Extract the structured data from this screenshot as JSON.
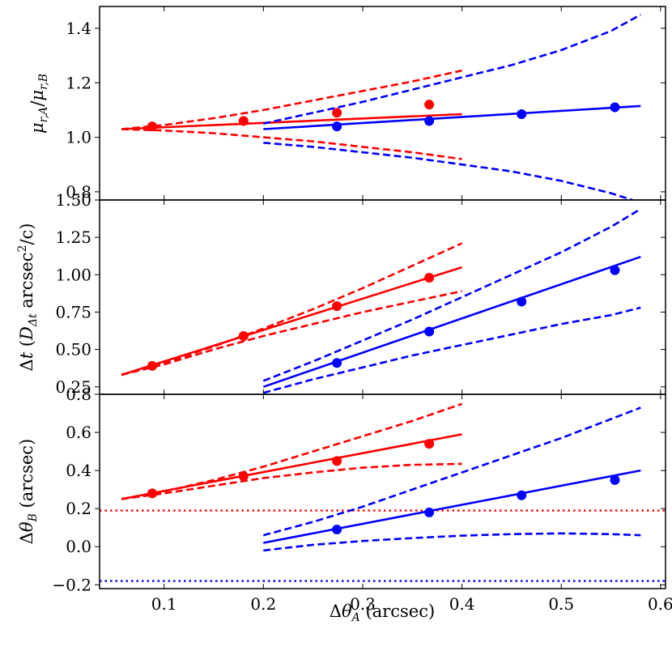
{
  "chart_data": {
    "type": "line",
    "x_axis": {
      "label": "Δθ_A (arcsec)",
      "xlim": [
        0.035,
        0.605
      ],
      "ticks": [
        0.1,
        0.2,
        0.3,
        0.4,
        0.5,
        0.6
      ],
      "tick_labels": [
        "0.1",
        "0.2",
        "0.3",
        "0.4",
        "0.5",
        "0.6"
      ]
    },
    "panels": [
      {
        "name": "mu-ratio",
        "ylabel": "μ_{r,A}/μ_{r,B}",
        "ylim": [
          0.77,
          1.48
        ],
        "yticks": [
          0.8,
          1.0,
          1.2,
          1.4
        ],
        "ytick_labels": [
          "0.8",
          "1.0",
          "1.2",
          "1.4"
        ],
        "hlines": [],
        "series": [
          {
            "name": "red-model",
            "color": "#ff0000",
            "style": "solid",
            "x": [
              0.057,
              0.4
            ],
            "y": [
              1.03,
              1.085
            ]
          },
          {
            "name": "red-upper",
            "color": "#ff0000",
            "style": "dashed",
            "x": [
              0.057,
              0.1,
              0.15,
              0.2,
              0.25,
              0.3,
              0.35,
              0.4
            ],
            "y": [
              1.03,
              1.045,
              1.07,
              1.1,
              1.135,
              1.17,
              1.205,
              1.245
            ]
          },
          {
            "name": "red-lower",
            "color": "#ff0000",
            "style": "dashed",
            "x": [
              0.057,
              0.1,
              0.15,
              0.2,
              0.25,
              0.3,
              0.35,
              0.4
            ],
            "y": [
              1.03,
              1.025,
              1.015,
              1.0,
              0.985,
              0.965,
              0.945,
              0.92
            ]
          },
          {
            "name": "red-points",
            "color": "#ff0000",
            "style": "points",
            "x": [
              0.088,
              0.18,
              0.274,
              0.367
            ],
            "y": [
              1.04,
              1.06,
              1.09,
              1.12
            ]
          },
          {
            "name": "blue-model",
            "color": "#0000ff",
            "style": "solid",
            "x": [
              0.2,
              0.58
            ],
            "y": [
              1.03,
              1.115
            ]
          },
          {
            "name": "blue-upper",
            "color": "#0000ff",
            "style": "dashed",
            "x": [
              0.2,
              0.25,
              0.3,
              0.35,
              0.4,
              0.45,
              0.5,
              0.55,
              0.58
            ],
            "y": [
              1.05,
              1.09,
              1.13,
              1.175,
              1.22,
              1.265,
              1.32,
              1.39,
              1.45
            ]
          },
          {
            "name": "blue-lower",
            "color": "#0000ff",
            "style": "dashed",
            "x": [
              0.2,
              0.25,
              0.3,
              0.35,
              0.4,
              0.45,
              0.5,
              0.55,
              0.58
            ],
            "y": [
              0.98,
              0.965,
              0.945,
              0.925,
              0.9,
              0.875,
              0.84,
              0.795,
              0.76
            ]
          },
          {
            "name": "blue-points",
            "color": "#0000ff",
            "style": "points",
            "x": [
              0.274,
              0.367,
              0.46,
              0.554
            ],
            "y": [
              1.04,
              1.06,
              1.085,
              1.11
            ]
          }
        ]
      },
      {
        "name": "time-delay",
        "ylabel": "Δt (D_{Δt} arcsec²/c)",
        "ylim": [
          0.2,
          1.5
        ],
        "yticks": [
          0.25,
          0.5,
          0.75,
          1.0,
          1.25,
          1.5
        ],
        "ytick_labels": [
          "0.25",
          "0.50",
          "0.75",
          "1.00",
          "1.25",
          "1.50"
        ],
        "hlines": [],
        "series": [
          {
            "name": "red-model",
            "color": "#ff0000",
            "style": "solid",
            "x": [
              0.057,
              0.4
            ],
            "y": [
              0.33,
              1.05
            ]
          },
          {
            "name": "red-upper",
            "color": "#ff0000",
            "style": "dashed",
            "x": [
              0.057,
              0.1,
              0.15,
              0.2,
              0.25,
              0.3,
              0.35,
              0.4
            ],
            "y": [
              0.33,
              0.41,
              0.52,
              0.64,
              0.77,
              0.91,
              1.06,
              1.21
            ]
          },
          {
            "name": "red-lower",
            "color": "#ff0000",
            "style": "dashed",
            "x": [
              0.057,
              0.1,
              0.15,
              0.2,
              0.25,
              0.3,
              0.35,
              0.4
            ],
            "y": [
              0.33,
              0.4,
              0.5,
              0.59,
              0.67,
              0.75,
              0.82,
              0.89
            ]
          },
          {
            "name": "red-points",
            "color": "#ff0000",
            "style": "points",
            "x": [
              0.088,
              0.18,
              0.274,
              0.367
            ],
            "y": [
              0.39,
              0.59,
              0.79,
              0.98
            ]
          },
          {
            "name": "blue-model",
            "color": "#0000ff",
            "style": "solid",
            "x": [
              0.2,
              0.58
            ],
            "y": [
              0.25,
              1.12
            ]
          },
          {
            "name": "blue-upper",
            "color": "#0000ff",
            "style": "dashed",
            "x": [
              0.2,
              0.25,
              0.3,
              0.35,
              0.4,
              0.45,
              0.5,
              0.55,
              0.58
            ],
            "y": [
              0.29,
              0.42,
              0.56,
              0.7,
              0.85,
              1.0,
              1.15,
              1.32,
              1.44
            ]
          },
          {
            "name": "blue-lower",
            "color": "#0000ff",
            "style": "dashed",
            "x": [
              0.2,
              0.25,
              0.3,
              0.35,
              0.4,
              0.45,
              0.5,
              0.55,
              0.58
            ],
            "y": [
              0.21,
              0.3,
              0.38,
              0.46,
              0.53,
              0.6,
              0.67,
              0.73,
              0.78
            ]
          },
          {
            "name": "blue-points",
            "color": "#0000ff",
            "style": "points",
            "x": [
              0.274,
              0.367,
              0.46,
              0.554
            ],
            "y": [
              0.41,
              0.62,
              0.82,
              1.03
            ]
          }
        ]
      },
      {
        "name": "delta-theta-b",
        "ylabel": "Δθ_B (arcsec)",
        "ylim": [
          -0.22,
          0.8
        ],
        "yticks": [
          -0.2,
          0.0,
          0.2,
          0.4,
          0.6,
          0.8
        ],
        "ytick_labels": [
          "−0.2",
          "0.0",
          "0.2",
          "0.4",
          "0.6",
          "0.8"
        ],
        "hlines": [
          {
            "name": "red-dotted-line",
            "color": "#ff0000",
            "y": 0.19
          },
          {
            "name": "blue-dotted-line",
            "color": "#0000ff",
            "y": -0.18
          }
        ],
        "series": [
          {
            "name": "red-model",
            "color": "#ff0000",
            "style": "solid",
            "x": [
              0.057,
              0.4
            ],
            "y": [
              0.25,
              0.59
            ]
          },
          {
            "name": "red-upper",
            "color": "#ff0000",
            "style": "dashed",
            "x": [
              0.057,
              0.1,
              0.15,
              0.2,
              0.25,
              0.3,
              0.35,
              0.4
            ],
            "y": [
              0.25,
              0.29,
              0.35,
              0.42,
              0.5,
              0.58,
              0.66,
              0.75
            ]
          },
          {
            "name": "red-lower",
            "color": "#ff0000",
            "style": "dashed",
            "x": [
              0.057,
              0.1,
              0.15,
              0.2,
              0.25,
              0.3,
              0.35,
              0.4
            ],
            "y": [
              0.25,
              0.28,
              0.32,
              0.36,
              0.39,
              0.415,
              0.43,
              0.435
            ]
          },
          {
            "name": "red-points",
            "color": "#ff0000",
            "style": "points",
            "x": [
              0.088,
              0.18,
              0.274,
              0.367
            ],
            "y": [
              0.28,
              0.37,
              0.45,
              0.54
            ]
          },
          {
            "name": "blue-model",
            "color": "#0000ff",
            "style": "solid",
            "x": [
              0.2,
              0.58
            ],
            "y": [
              0.02,
              0.4
            ]
          },
          {
            "name": "blue-upper",
            "color": "#0000ff",
            "style": "dashed",
            "x": [
              0.2,
              0.25,
              0.3,
              0.35,
              0.4,
              0.45,
              0.5,
              0.55,
              0.58
            ],
            "y": [
              0.06,
              0.13,
              0.21,
              0.3,
              0.39,
              0.48,
              0.57,
              0.67,
              0.73
            ]
          },
          {
            "name": "blue-lower",
            "color": "#0000ff",
            "style": "dashed",
            "x": [
              0.2,
              0.25,
              0.3,
              0.35,
              0.4,
              0.45,
              0.5,
              0.55,
              0.58
            ],
            "y": [
              -0.02,
              0.01,
              0.03,
              0.045,
              0.058,
              0.066,
              0.07,
              0.066,
              0.06
            ]
          },
          {
            "name": "blue-points",
            "color": "#0000ff",
            "style": "points",
            "x": [
              0.274,
              0.367,
              0.46,
              0.554
            ],
            "y": [
              0.09,
              0.18,
              0.27,
              0.35
            ]
          }
        ]
      }
    ]
  }
}
